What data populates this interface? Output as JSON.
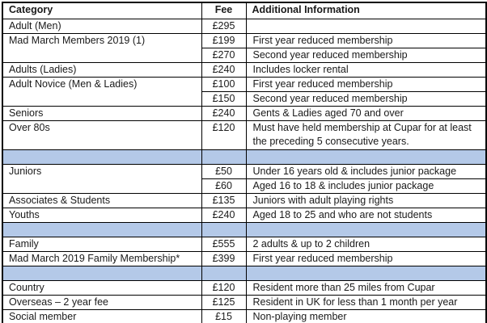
{
  "table": {
    "headers": {
      "category": "Category",
      "fee": "Fee",
      "info": "Additional Information"
    },
    "rows": [
      {
        "type": "data",
        "category": "Adult (Men)",
        "fee": "£295",
        "info": ""
      },
      {
        "type": "data",
        "category": "Mad March Members 2019 (1)",
        "catRowspan": 2,
        "fee": "£199",
        "info": "First year reduced membership"
      },
      {
        "type": "cont",
        "fee": "£270",
        "info": "Second year reduced membership"
      },
      {
        "type": "data",
        "category": "Adults (Ladies)",
        "fee": "£240",
        "info": "Includes locker rental"
      },
      {
        "type": "data",
        "category": "Adult Novice (Men & Ladies)",
        "catRowspan": 2,
        "fee": "£100",
        "info": "First year reduced membership"
      },
      {
        "type": "cont",
        "fee": "£150",
        "info": "Second year reduced membership"
      },
      {
        "type": "data",
        "category": "Seniors",
        "fee": "£240",
        "info": "Gents & Ladies aged 70 and over"
      },
      {
        "type": "data",
        "category": "Over 80s",
        "fee": "£120",
        "info": "Must have held membership at Cupar for at least the preceding 5 consecutive years.",
        "tall": true
      },
      {
        "type": "spacer"
      },
      {
        "type": "data",
        "category": "Juniors",
        "catRowspan": 2,
        "fee": "£50",
        "info": "Under 16 years old & includes junior package"
      },
      {
        "type": "cont",
        "fee": "£60",
        "info": "Aged 16 to 18 & includes junior package"
      },
      {
        "type": "data",
        "category": "Associates & Students",
        "fee": "£135",
        "info": "Juniors with adult playing rights"
      },
      {
        "type": "data",
        "category": "Youths",
        "fee": "£240",
        "info": "Aged 18 to 25 and who are not students"
      },
      {
        "type": "spacer"
      },
      {
        "type": "data",
        "category": "Family",
        "fee": "£555",
        "info": "2 adults & up to 2 children"
      },
      {
        "type": "data",
        "category": "Mad March 2019 Family Membership*",
        "fee": "£399",
        "info": "First year reduced membership"
      },
      {
        "type": "spacer"
      },
      {
        "type": "data",
        "category": "Country",
        "fee": "£120",
        "info": "Resident more than 25 miles from Cupar"
      },
      {
        "type": "data",
        "category": "Overseas – 2 year fee",
        "fee": "£125",
        "info": "Resident in UK for less than 1 month per year"
      },
      {
        "type": "data",
        "category": "Social member",
        "fee": "£15",
        "info": "Non-playing member"
      }
    ],
    "spacer_color": "#b4c9e8"
  }
}
